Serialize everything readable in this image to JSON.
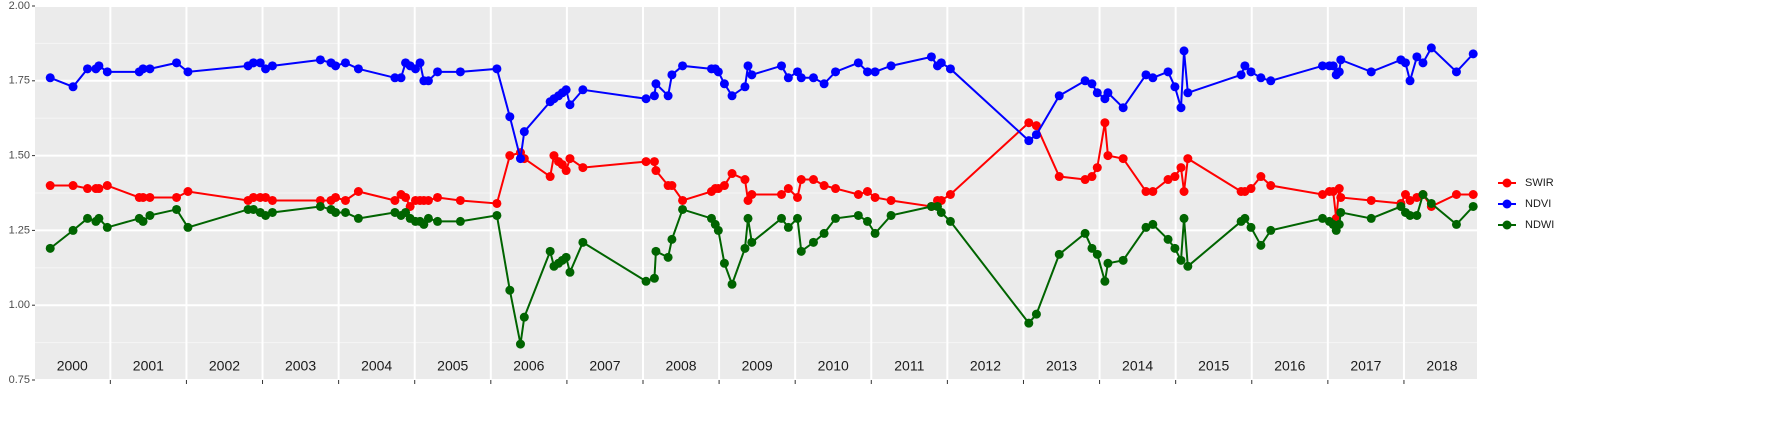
{
  "chart_data": {
    "type": "line",
    "x": [
      2000.21,
      2000.51,
      2000.7,
      2000.81,
      2000.85,
      2000.96,
      2001.38,
      2001.43,
      2001.52,
      2001.87,
      2002.02,
      2002.81,
      2002.88,
      2002.97,
      2003.04,
      2003.13,
      2003.76,
      2003.9,
      2003.96,
      2004.09,
      2004.26,
      2004.74,
      2004.82,
      2004.88,
      2004.94,
      2005.01,
      2005.07,
      2005.12,
      2005.18,
      2005.3,
      2005.6,
      2006.08,
      2006.25,
      2006.39,
      2006.44,
      2006.78,
      2006.83,
      2006.89,
      2006.94,
      2006.99,
      2007.04,
      2007.21,
      2008.04,
      2008.15,
      2008.17,
      2008.33,
      2008.38,
      2008.52,
      2008.9,
      2008.95,
      2008.99,
      2009.07,
      2009.17,
      2009.34,
      2009.38,
      2009.43,
      2009.82,
      2009.91,
      2010.03,
      2010.08,
      2010.24,
      2010.38,
      2010.53,
      2010.83,
      2010.95,
      2011.05,
      2011.26,
      2011.79,
      2011.87,
      2011.92,
      2012.04,
      2013.07,
      2013.17,
      2013.47,
      2013.81,
      2013.9,
      2013.97,
      2014.07,
      2014.11,
      2014.31,
      2014.61,
      2014.7,
      2014.9,
      2014.99,
      2015.07,
      2015.11,
      2015.16,
      2015.86,
      2015.91,
      2015.99,
      2016.12,
      2016.25,
      2016.93,
      2017.02,
      2017.07,
      2017.11,
      2017.15,
      2017.17,
      2017.57,
      2017.96,
      2018.02,
      2018.08,
      2018.17,
      2018.25,
      2018.36,
      2018.69,
      2018.91
    ],
    "series": [
      {
        "name": "SWIR",
        "color": "#ff0000",
        "values": [
          1.4,
          1.4,
          1.39,
          1.39,
          1.39,
          1.4,
          1.36,
          1.36,
          1.36,
          1.36,
          1.38,
          1.35,
          1.36,
          1.36,
          1.36,
          1.35,
          1.35,
          1.35,
          1.36,
          1.35,
          1.38,
          1.35,
          1.37,
          1.36,
          1.33,
          1.35,
          1.35,
          1.35,
          1.35,
          1.36,
          1.35,
          1.34,
          1.5,
          1.51,
          1.49,
          1.43,
          1.5,
          1.48,
          1.47,
          1.45,
          1.49,
          1.46,
          1.48,
          1.48,
          1.45,
          1.4,
          1.4,
          1.35,
          1.38,
          1.39,
          1.39,
          1.4,
          1.44,
          1.42,
          1.35,
          1.37,
          1.37,
          1.39,
          1.36,
          1.42,
          1.42,
          1.4,
          1.39,
          1.37,
          1.38,
          1.36,
          1.35,
          1.33,
          1.35,
          1.35,
          1.37,
          1.61,
          1.6,
          1.43,
          1.42,
          1.43,
          1.46,
          1.61,
          1.5,
          1.49,
          1.38,
          1.38,
          1.42,
          1.43,
          1.46,
          1.38,
          1.49,
          1.38,
          1.38,
          1.39,
          1.43,
          1.4,
          1.37,
          1.38,
          1.38,
          1.29,
          1.39,
          1.36,
          1.35,
          1.34,
          1.37,
          1.35,
          1.36,
          1.37,
          1.33,
          1.37,
          1.37
        ]
      },
      {
        "name": "NDVI",
        "color": "#0000ff",
        "values": [
          1.76,
          1.73,
          1.79,
          1.79,
          1.8,
          1.78,
          1.78,
          1.79,
          1.79,
          1.81,
          1.78,
          1.8,
          1.81,
          1.81,
          1.79,
          1.8,
          1.82,
          1.81,
          1.8,
          1.81,
          1.79,
          1.76,
          1.76,
          1.81,
          1.8,
          1.79,
          1.81,
          1.75,
          1.75,
          1.78,
          1.78,
          1.79,
          1.63,
          1.49,
          1.58,
          1.68,
          1.69,
          1.7,
          1.71,
          1.72,
          1.67,
          1.72,
          1.69,
          1.7,
          1.74,
          1.7,
          1.77,
          1.8,
          1.79,
          1.79,
          1.78,
          1.74,
          1.7,
          1.73,
          1.8,
          1.77,
          1.8,
          1.76,
          1.78,
          1.76,
          1.76,
          1.74,
          1.78,
          1.81,
          1.78,
          1.78,
          1.8,
          1.83,
          1.8,
          1.81,
          1.79,
          1.55,
          1.57,
          1.7,
          1.75,
          1.74,
          1.71,
          1.69,
          1.71,
          1.66,
          1.77,
          1.76,
          1.78,
          1.73,
          1.66,
          1.85,
          1.71,
          1.77,
          1.8,
          1.78,
          1.76,
          1.75,
          1.8,
          1.8,
          1.8,
          1.77,
          1.78,
          1.82,
          1.78,
          1.82,
          1.81,
          1.75,
          1.83,
          1.81,
          1.86,
          1.78,
          1.84
        ]
      },
      {
        "name": "NDWI",
        "color": "#006400",
        "values": [
          1.19,
          1.25,
          1.29,
          1.28,
          1.29,
          1.26,
          1.29,
          1.28,
          1.3,
          1.32,
          1.26,
          1.32,
          1.32,
          1.31,
          1.3,
          1.31,
          1.33,
          1.32,
          1.31,
          1.31,
          1.29,
          1.31,
          1.3,
          1.31,
          1.29,
          1.28,
          1.28,
          1.27,
          1.29,
          1.28,
          1.28,
          1.3,
          1.05,
          0.87,
          0.96,
          1.18,
          1.13,
          1.14,
          1.15,
          1.16,
          1.11,
          1.21,
          1.08,
          1.09,
          1.18,
          1.16,
          1.22,
          1.32,
          1.29,
          1.27,
          1.25,
          1.14,
          1.07,
          1.19,
          1.29,
          1.21,
          1.29,
          1.26,
          1.29,
          1.18,
          1.21,
          1.24,
          1.29,
          1.3,
          1.28,
          1.24,
          1.3,
          1.33,
          1.33,
          1.31,
          1.28,
          0.94,
          0.97,
          1.17,
          1.24,
          1.19,
          1.17,
          1.08,
          1.14,
          1.15,
          1.26,
          1.27,
          1.22,
          1.19,
          1.15,
          1.29,
          1.13,
          1.28,
          1.29,
          1.26,
          1.2,
          1.25,
          1.29,
          1.28,
          1.27,
          1.25,
          1.27,
          1.31,
          1.29,
          1.33,
          1.31,
          1.3,
          1.3,
          1.37,
          1.34,
          1.27,
          1.33
        ]
      }
    ],
    "year_labels": [
      "2000",
      "2001",
      "2002",
      "2003",
      "2004",
      "2005",
      "2006",
      "2007",
      "2008",
      "2009",
      "2010",
      "2011",
      "2012",
      "2013",
      "2014",
      "2015",
      "2016",
      "2017",
      "2018"
    ],
    "xlim": [
      2000.01,
      2018.96
    ],
    "xticks": [
      2001,
      2002,
      2003,
      2004,
      2005,
      2006,
      2007,
      2008,
      2009,
      2010,
      2011,
      2012,
      2013,
      2014,
      2015,
      2016,
      2017,
      2018
    ],
    "ylim": [
      0.75,
      2.0
    ],
    "yticks": [
      0.75,
      {
        "value": 1,
        "label": "1.00"
      },
      1.25,
      {
        "value": 1.5,
        "label": "1.50"
      },
      1.75,
      {
        "value": 2,
        "label": "2.00"
      }
    ],
    "grid": true,
    "legend": "right"
  }
}
